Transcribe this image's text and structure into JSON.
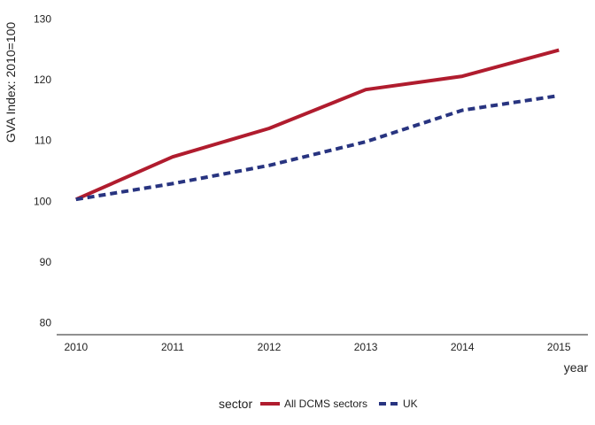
{
  "chart_data": {
    "type": "line",
    "title": "",
    "xlabel": "year",
    "ylabel": "GVA Index: 2010=100",
    "x": [
      2010,
      2011,
      2012,
      2013,
      2014,
      2015
    ],
    "xticks": [
      "2010",
      "2011",
      "2012",
      "2013",
      "2014",
      "2015"
    ],
    "yticks": [
      "80",
      "90",
      "100",
      "110",
      "120",
      "130"
    ],
    "xlim": [
      2009.8,
      2015.3
    ],
    "ylim": [
      78,
      132
    ],
    "grid": false,
    "legend": {
      "title": "sector",
      "position": "bottom"
    },
    "series": [
      {
        "name": "All DCMS sectors",
        "color": "#b01c2e",
        "style": "solid",
        "values": [
          100.3,
          107.3,
          112.0,
          118.4,
          120.6,
          124.9
        ]
      },
      {
        "name": "UK",
        "color": "#283480",
        "style": "dashed",
        "values": [
          100.3,
          102.9,
          105.9,
          109.8,
          115.0,
          117.4
        ]
      }
    ]
  }
}
